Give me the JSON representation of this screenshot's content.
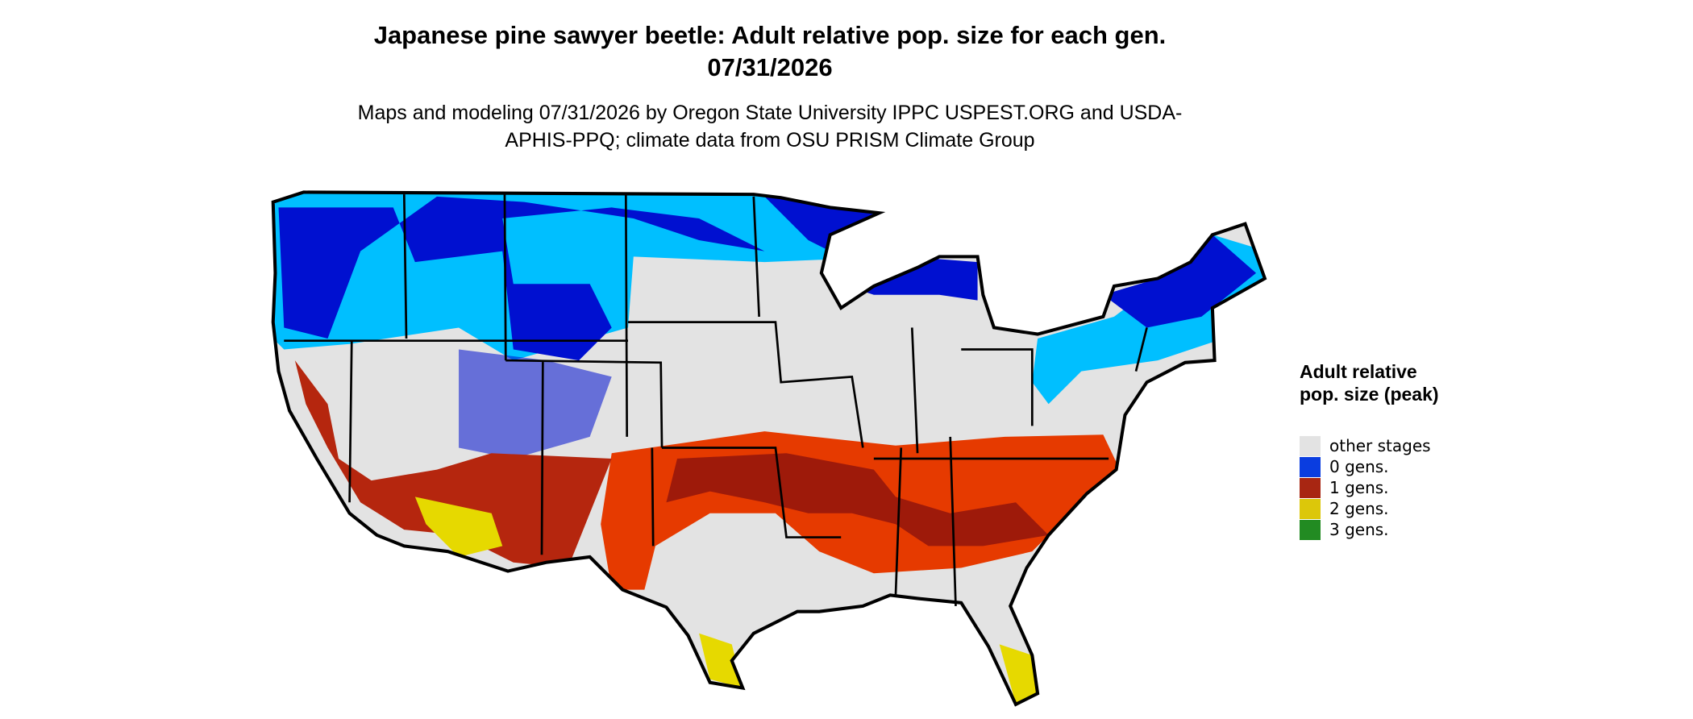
{
  "title": "Japanese pine sawyer beetle: Adult relative pop. size for each gen. 07/31/2026",
  "subtitle": "Maps and modeling 07/31/2026 by Oregon State University IPPC USPEST.ORG and USDA-APHIS-PPQ; climate data from OSU PRISM Climate Group",
  "legend": {
    "title": "Adult relative pop. size (peak)",
    "items": [
      {
        "label": "other stages",
        "color": "#e3e3e3"
      },
      {
        "label": "0 gens.",
        "color": "#0a3de0"
      },
      {
        "label": "1 gens.",
        "color": "#a82612"
      },
      {
        "label": "2 gens.",
        "color": "#dcc70a"
      },
      {
        "label": "3 gens.",
        "color": "#228b22"
      }
    ]
  }
}
